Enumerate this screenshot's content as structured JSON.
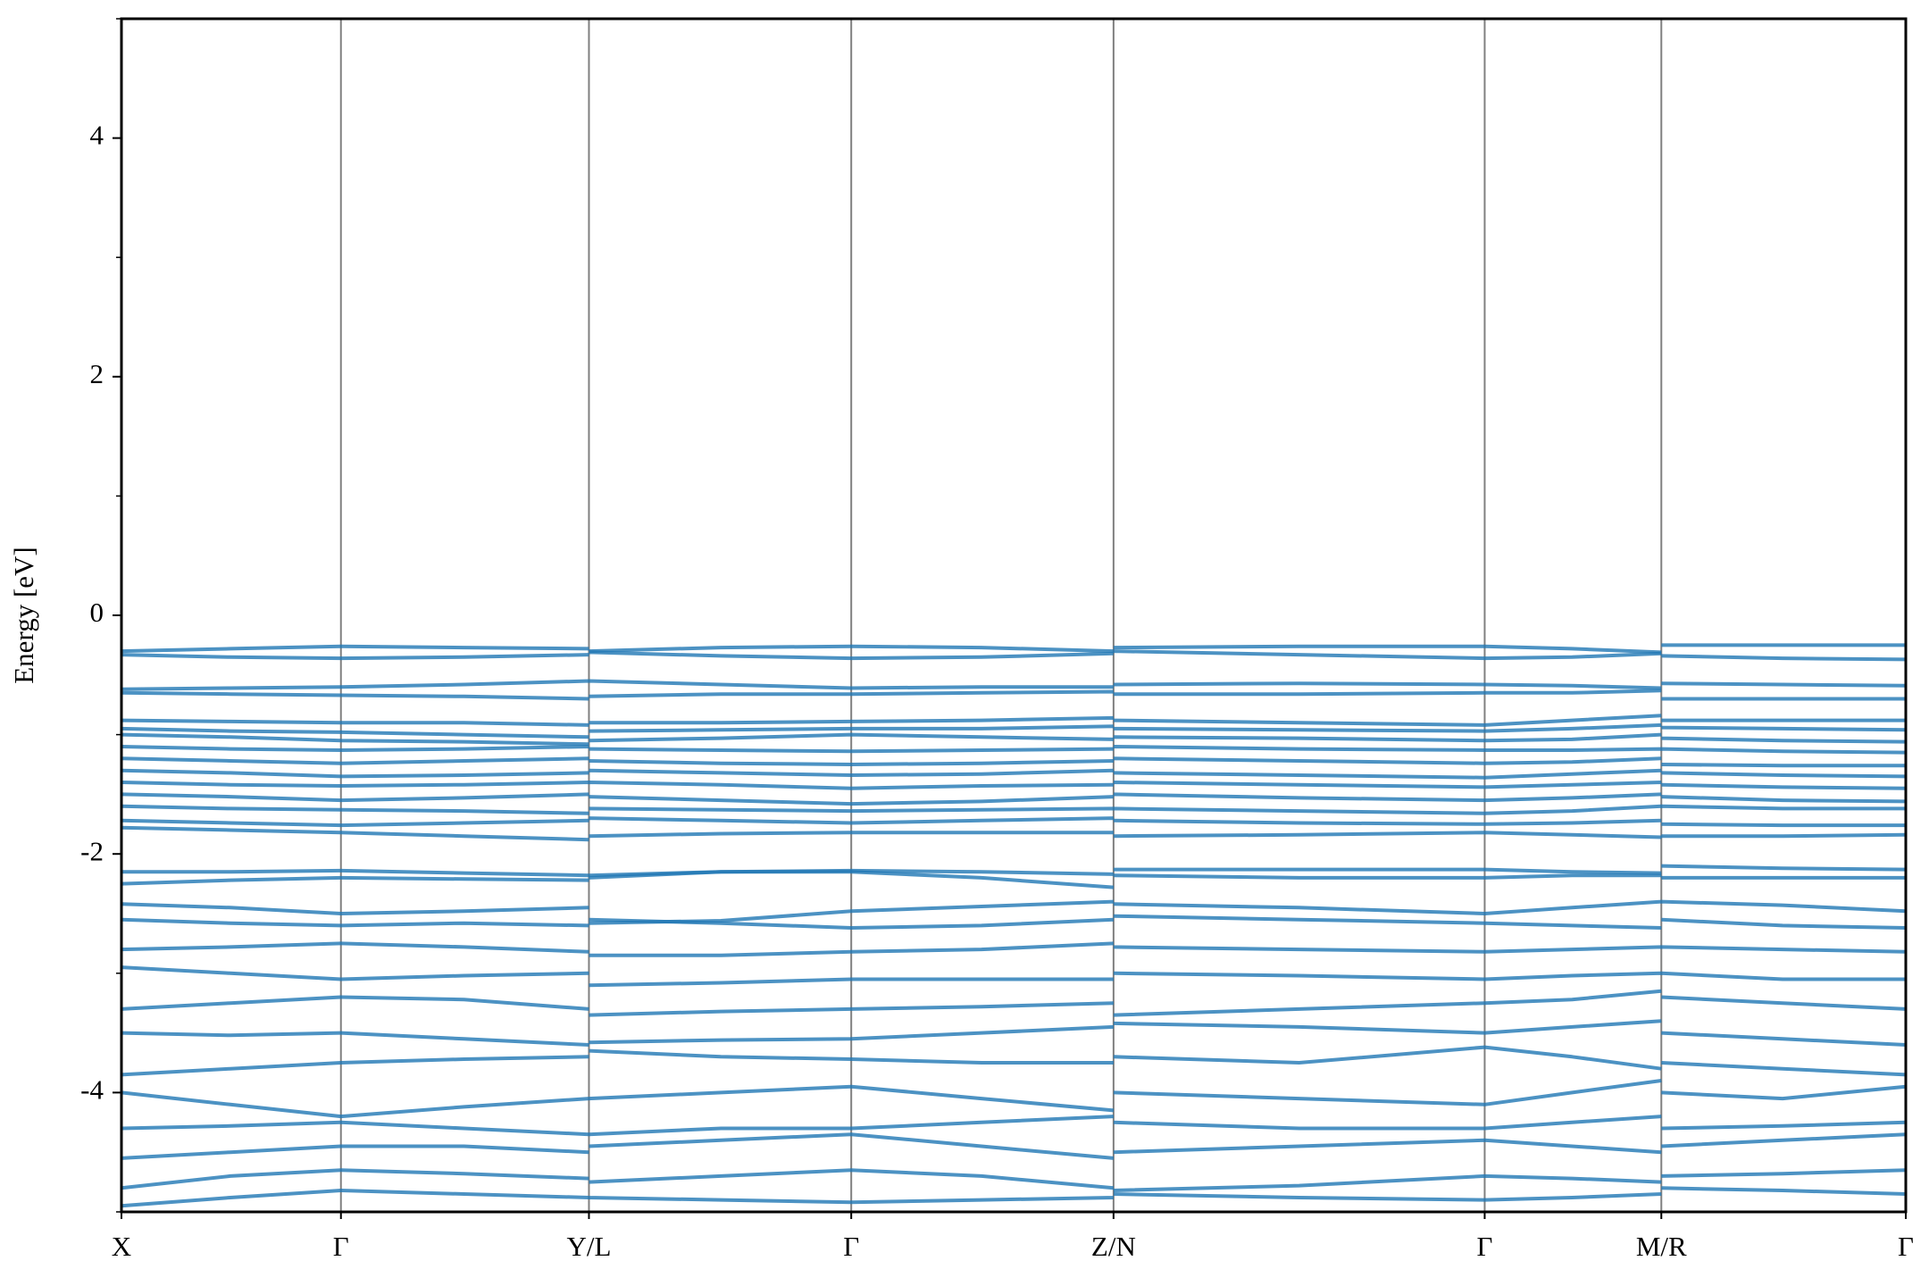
{
  "chart_data": {
    "type": "line",
    "ylabel": "Energy [eV]",
    "ylim": [
      -5,
      5
    ],
    "yticks": [
      -4,
      -2,
      0,
      2,
      4
    ],
    "yminorticks": [
      -5,
      -3,
      -1,
      1,
      3,
      5
    ],
    "xlim": [
      0,
      1
    ],
    "xticks": [
      {
        "value": 0,
        "label": "X"
      },
      {
        "value": 0.123,
        "label": "Γ"
      },
      {
        "value": 0.262,
        "label": "Y/L"
      },
      {
        "value": 0.409,
        "label": "Γ"
      },
      {
        "value": 0.556,
        "label": "Z/N"
      },
      {
        "value": 0.764,
        "label": "Γ"
      },
      {
        "value": 0.863,
        "label": "M/R"
      },
      {
        "value": 1,
        "label": "Γ"
      }
    ],
    "vlines": true,
    "color": "#1f77b4",
    "x": [
      0,
      0.061,
      0.123,
      0.192,
      0.262,
      0.262,
      0.262,
      0.336,
      0.409,
      0.482,
      0.556,
      0.556,
      0.556,
      0.66,
      0.764,
      0.813,
      0.863,
      0.863,
      0.863,
      0.931,
      1
    ],
    "series": [
      {
        "values": [
          -0.3,
          -0.28,
          -0.26,
          -0.27,
          -0.28,
          null,
          -0.3,
          -0.27,
          -0.26,
          -0.27,
          -0.3,
          null,
          -0.27,
          -0.26,
          -0.26,
          -0.28,
          -0.31,
          null,
          -0.25,
          -0.25,
          -0.25
        ]
      },
      {
        "values": [
          -0.33,
          -0.35,
          -0.36,
          -0.35,
          -0.33,
          null,
          -0.31,
          -0.34,
          -0.36,
          -0.35,
          -0.32,
          null,
          -0.3,
          -0.33,
          -0.36,
          -0.35,
          -0.32,
          null,
          -0.34,
          -0.36,
          -0.37
        ]
      },
      {
        "values": [
          -0.62,
          -0.61,
          -0.6,
          -0.58,
          -0.55,
          null,
          -0.55,
          -0.58,
          -0.61,
          -0.6,
          -0.6,
          null,
          -0.58,
          -0.57,
          -0.58,
          -0.59,
          -0.61,
          null,
          -0.57,
          -0.58,
          -0.59
        ]
      },
      {
        "values": [
          -0.65,
          -0.66,
          -0.67,
          -0.68,
          -0.7,
          null,
          -0.68,
          -0.66,
          -0.66,
          -0.65,
          -0.64,
          null,
          -0.66,
          -0.66,
          -0.65,
          -0.65,
          -0.63,
          null,
          -0.7,
          -0.7,
          -0.7
        ]
      },
      {
        "values": [
          -0.88,
          -0.89,
          -0.9,
          -0.9,
          -0.92,
          null,
          -0.9,
          -0.9,
          -0.89,
          -0.88,
          -0.86,
          null,
          -0.88,
          -0.9,
          -0.92,
          -0.88,
          -0.84,
          null,
          -0.88,
          -0.88,
          -0.88
        ]
      },
      {
        "values": [
          -0.95,
          -0.97,
          -0.98,
          -1.0,
          -1.02,
          null,
          -0.97,
          -0.96,
          -0.95,
          -0.95,
          -0.93,
          null,
          -0.95,
          -0.96,
          -0.97,
          -0.95,
          -0.92,
          null,
          -0.94,
          -0.95,
          -0.96
        ]
      },
      {
        "values": [
          -1.0,
          -1.02,
          -1.05,
          -1.06,
          -1.08,
          null,
          -1.05,
          -1.03,
          -1.0,
          -1.02,
          -1.04,
          null,
          -1.02,
          -1.03,
          -1.05,
          -1.04,
          -1.0,
          null,
          -1.03,
          -1.05,
          -1.06
        ]
      },
      {
        "values": [
          -1.1,
          -1.12,
          -1.13,
          -1.12,
          -1.1,
          null,
          -1.12,
          -1.13,
          -1.14,
          -1.13,
          -1.12,
          null,
          -1.1,
          -1.12,
          -1.13,
          -1.13,
          -1.12,
          null,
          -1.12,
          -1.14,
          -1.15
        ]
      },
      {
        "values": [
          -1.2,
          -1.22,
          -1.24,
          -1.22,
          -1.2,
          null,
          -1.22,
          -1.24,
          -1.25,
          -1.24,
          -1.22,
          null,
          -1.2,
          -1.22,
          -1.24,
          -1.23,
          -1.2,
          null,
          -1.25,
          -1.26,
          -1.26
        ]
      },
      {
        "values": [
          -1.3,
          -1.32,
          -1.35,
          -1.34,
          -1.32,
          null,
          -1.3,
          -1.32,
          -1.34,
          -1.33,
          -1.3,
          null,
          -1.32,
          -1.34,
          -1.36,
          -1.33,
          -1.3,
          null,
          -1.32,
          -1.34,
          -1.35
        ]
      },
      {
        "values": [
          -1.4,
          -1.42,
          -1.43,
          -1.42,
          -1.4,
          null,
          -1.4,
          -1.42,
          -1.45,
          -1.43,
          -1.42,
          null,
          -1.4,
          -1.42,
          -1.44,
          -1.42,
          -1.4,
          null,
          -1.42,
          -1.44,
          -1.45
        ]
      },
      {
        "values": [
          -1.5,
          -1.52,
          -1.55,
          -1.53,
          -1.5,
          null,
          -1.52,
          -1.55,
          -1.58,
          -1.56,
          -1.52,
          null,
          -1.5,
          -1.53,
          -1.55,
          -1.53,
          -1.5,
          null,
          -1.52,
          -1.55,
          -1.56
        ]
      },
      {
        "values": [
          -1.6,
          -1.62,
          -1.63,
          -1.64,
          -1.66,
          null,
          -1.62,
          -1.63,
          -1.64,
          -1.63,
          -1.62,
          null,
          -1.62,
          -1.64,
          -1.66,
          -1.64,
          -1.6,
          null,
          -1.6,
          -1.62,
          -1.62
        ]
      },
      {
        "values": [
          -1.72,
          -1.74,
          -1.76,
          -1.74,
          -1.72,
          null,
          -1.7,
          -1.72,
          -1.74,
          -1.72,
          -1.7,
          null,
          -1.72,
          -1.74,
          -1.75,
          -1.74,
          -1.72,
          null,
          -1.75,
          -1.76,
          -1.76
        ]
      },
      {
        "values": [
          -1.78,
          -1.8,
          -1.82,
          -1.85,
          -1.88,
          null,
          -1.85,
          -1.83,
          -1.82,
          -1.82,
          -1.82,
          null,
          -1.85,
          -1.84,
          -1.82,
          -1.84,
          -1.86,
          null,
          -1.85,
          -1.85,
          -1.84
        ]
      },
      {
        "values": [
          -2.15,
          -2.15,
          -2.14,
          -2.16,
          -2.18,
          null,
          -2.18,
          -2.15,
          -2.14,
          -2.15,
          -2.17,
          null,
          -2.13,
          -2.13,
          -2.13,
          -2.15,
          -2.16,
          null,
          -2.1,
          -2.12,
          -2.13
        ]
      },
      {
        "values": [
          -2.25,
          -2.22,
          -2.2,
          -2.21,
          -2.22,
          null,
          -2.2,
          -2.15,
          -2.15,
          -2.2,
          -2.28,
          null,
          -2.18,
          -2.2,
          -2.2,
          -2.18,
          -2.18,
          null,
          -2.2,
          -2.2,
          -2.2
        ]
      },
      {
        "values": [
          -2.42,
          -2.45,
          -2.5,
          -2.48,
          -2.45,
          null,
          -2.58,
          -2.56,
          -2.48,
          -2.44,
          -2.4,
          null,
          -2.42,
          -2.45,
          -2.5,
          -2.45,
          -2.4,
          null,
          -2.4,
          -2.43,
          -2.48
        ]
      },
      {
        "values": [
          -2.55,
          -2.58,
          -2.6,
          -2.58,
          -2.6,
          null,
          -2.55,
          -2.58,
          -2.62,
          -2.6,
          -2.55,
          null,
          -2.52,
          -2.55,
          -2.58,
          -2.6,
          -2.62,
          null,
          -2.55,
          -2.6,
          -2.62
        ]
      },
      {
        "values": [
          -2.8,
          -2.78,
          -2.75,
          -2.78,
          -2.82,
          null,
          -2.85,
          -2.85,
          -2.82,
          -2.8,
          -2.75,
          null,
          -2.78,
          -2.8,
          -2.82,
          -2.8,
          -2.78,
          null,
          -2.78,
          -2.8,
          -2.82
        ]
      },
      {
        "values": [
          -2.95,
          -3.0,
          -3.05,
          -3.02,
          -3.0,
          null,
          -3.1,
          -3.08,
          -3.05,
          -3.05,
          -3.05,
          null,
          -3.0,
          -3.02,
          -3.05,
          -3.02,
          -3.0,
          null,
          -3.0,
          -3.05,
          -3.05
        ]
      },
      {
        "values": [
          -3.3,
          -3.25,
          -3.2,
          -3.22,
          -3.3,
          null,
          -3.35,
          -3.32,
          -3.3,
          -3.28,
          -3.25,
          null,
          -3.35,
          -3.3,
          -3.25,
          -3.22,
          -3.15,
          null,
          -3.2,
          -3.25,
          -3.3
        ]
      },
      {
        "values": [
          -3.5,
          -3.52,
          -3.5,
          -3.55,
          -3.6,
          null,
          -3.58,
          -3.56,
          -3.55,
          -3.5,
          -3.45,
          null,
          -3.42,
          -3.45,
          -3.5,
          -3.45,
          -3.4,
          null,
          -3.5,
          -3.55,
          -3.6
        ]
      },
      {
        "values": [
          -3.85,
          -3.8,
          -3.75,
          -3.72,
          -3.7,
          null,
          -3.65,
          -3.7,
          -3.72,
          -3.75,
          -3.75,
          null,
          -3.7,
          -3.75,
          -3.62,
          -3.7,
          -3.8,
          null,
          -3.75,
          -3.8,
          -3.85
        ]
      },
      {
        "values": [
          -4.0,
          -4.1,
          -4.2,
          -4.12,
          -4.05,
          null,
          -4.05,
          -4.0,
          -3.95,
          -4.05,
          -4.15,
          null,
          -4.0,
          -4.05,
          -4.1,
          -4.0,
          -3.9,
          null,
          -4.0,
          -4.05,
          -3.95
        ]
      },
      {
        "values": [
          -4.3,
          -4.28,
          -4.25,
          -4.3,
          -4.35,
          null,
          -4.35,
          -4.3,
          -4.3,
          -4.25,
          -4.2,
          null,
          -4.25,
          -4.3,
          -4.3,
          -4.25,
          -4.2,
          null,
          -4.3,
          -4.28,
          -4.25
        ]
      },
      {
        "values": [
          -4.55,
          -4.5,
          -4.45,
          -4.45,
          -4.5,
          null,
          -4.45,
          -4.4,
          -4.35,
          -4.45,
          -4.55,
          null,
          -4.5,
          -4.45,
          -4.4,
          -4.45,
          -4.5,
          null,
          -4.45,
          -4.4,
          -4.35
        ]
      },
      {
        "values": [
          -4.8,
          -4.7,
          -4.65,
          -4.68,
          -4.72,
          null,
          -4.75,
          -4.7,
          -4.65,
          -4.7,
          -4.8,
          null,
          -4.82,
          -4.78,
          -4.7,
          -4.72,
          -4.75,
          null,
          -4.7,
          -4.68,
          -4.65
        ]
      },
      {
        "values": [
          -4.95,
          -4.88,
          -4.82,
          -4.85,
          -4.88,
          null,
          -4.88,
          -4.9,
          -4.92,
          -4.9,
          -4.88,
          null,
          -4.85,
          -4.88,
          -4.9,
          -4.88,
          -4.85,
          null,
          -4.8,
          -4.82,
          -4.85
        ]
      }
    ]
  }
}
